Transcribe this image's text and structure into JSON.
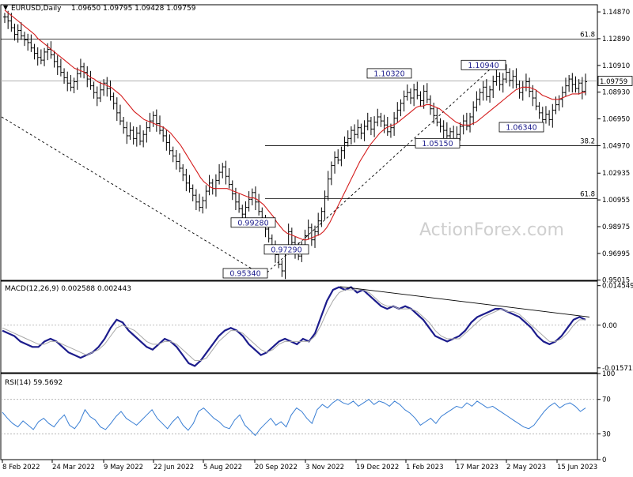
{
  "header": {
    "arrow_glyph": "▼",
    "symbol": "EURUSD,Daily",
    "ohlc": "1.09650 1.09795 1.09428 1.09759"
  },
  "watermark": "ActionForex.com",
  "chart_data": [
    {
      "type": "candlestick",
      "panel": "price",
      "title": "EURUSD,Daily",
      "ylim": [
        0.95,
        1.154
      ],
      "y_ticks": [
        "1.14870",
        "1.12890",
        "1.10910",
        "1.08930",
        "1.06950",
        "1.04970",
        "1.02935",
        "1.00955",
        "0.98975",
        "0.96995",
        "0.95015"
      ],
      "y_tick_values": [
        1.1487,
        1.1289,
        1.1091,
        1.0893,
        1.0695,
        1.0497,
        1.02935,
        1.00955,
        0.98975,
        0.96995,
        0.95015
      ],
      "current_price": "1.09759",
      "current_price_value": 1.09759,
      "fib_levels": [
        {
          "label": "61.8",
          "value": 1.1285
        },
        {
          "label": "38.2",
          "value": 1.0497
        },
        {
          "label": "61.8",
          "value": 1.0105
        }
      ],
      "annotations": [
        {
          "text": "1.10320",
          "value": 1.1032
        },
        {
          "text": "1.10940",
          "value": 1.1094
        },
        {
          "text": "1.06340",
          "value": 1.0634
        },
        {
          "text": "1.05150",
          "value": 1.0515
        },
        {
          "text": "0.95340",
          "value": 0.9534
        },
        {
          "text": "0.99280",
          "value": 0.9928
        },
        {
          "text": "0.97290",
          "value": 0.9729
        }
      ],
      "close_series": [
        1.145,
        1.142,
        1.137,
        1.132,
        1.135,
        1.131,
        1.128,
        1.126,
        1.122,
        1.118,
        1.115,
        1.113,
        1.119,
        1.121,
        1.117,
        1.112,
        1.108,
        1.104,
        1.1,
        1.096,
        1.093,
        1.097,
        1.103,
        1.108,
        1.104,
        1.099,
        1.094,
        1.089,
        1.085,
        1.091,
        1.096,
        1.092,
        1.086,
        1.081,
        1.074,
        1.068,
        1.063,
        1.057,
        1.061,
        1.055,
        1.059,
        1.053,
        1.058,
        1.063,
        1.068,
        1.072,
        1.066,
        1.061,
        1.057,
        1.052,
        1.046,
        1.042,
        1.038,
        1.033,
        1.028,
        1.022,
        1.018,
        1.013,
        1.008,
        1.004,
        1.009,
        1.016,
        1.022,
        1.018,
        1.024,
        1.03,
        1.034,
        1.027,
        1.021,
        1.014,
        1.008,
        1.003,
        0.999,
        1.004,
        1.01,
        1.015,
        1.008,
        1.001,
        0.994,
        0.988,
        0.981,
        0.975,
        0.969,
        0.962,
        0.957,
        0.972,
        0.986,
        0.978,
        0.972,
        0.968,
        0.976,
        0.983,
        0.989,
        0.98,
        0.986,
        0.994,
        1.001,
        1.012,
        1.025,
        1.035,
        1.041,
        1.039,
        1.046,
        1.052,
        1.055,
        1.061,
        1.058,
        1.063,
        1.059,
        1.064,
        1.068,
        1.062,
        1.067,
        1.071,
        1.068,
        1.065,
        1.06,
        1.063,
        1.07,
        1.076,
        1.081,
        1.086,
        1.089,
        1.085,
        1.091,
        1.087,
        1.083,
        1.09,
        1.084,
        1.077,
        1.072,
        1.067,
        1.064,
        1.061,
        1.057,
        1.06,
        1.055,
        1.058,
        1.064,
        1.068,
        1.064,
        1.071,
        1.078,
        1.084,
        1.089,
        1.093,
        1.086,
        1.091,
        1.097,
        1.101,
        1.095,
        1.099,
        1.104,
        1.098,
        1.101,
        1.095,
        1.089,
        1.093,
        1.097,
        1.09,
        1.085,
        1.079,
        1.074,
        1.069,
        1.073,
        1.069,
        1.076,
        1.08,
        1.084,
        1.089,
        1.094,
        1.099,
        1.095,
        1.092,
        1.096,
        1.09,
        1.097
      ],
      "ma_series": [
        1.15,
        1.148,
        1.146,
        1.144,
        1.142,
        1.14,
        1.138,
        1.136,
        1.134,
        1.132,
        1.129,
        1.127,
        1.125,
        1.123,
        1.121,
        1.119,
        1.117,
        1.115,
        1.113,
        1.111,
        1.109,
        1.107,
        1.106,
        1.105,
        1.104,
        1.102,
        1.1,
        1.099,
        1.097,
        1.096,
        1.095,
        1.094,
        1.093,
        1.091,
        1.089,
        1.087,
        1.084,
        1.081,
        1.078,
        1.075,
        1.073,
        1.071,
        1.069,
        1.068,
        1.067,
        1.066,
        1.065,
        1.064,
        1.063,
        1.061,
        1.059,
        1.056,
        1.053,
        1.05,
        1.046,
        1.042,
        1.038,
        1.034,
        1.03,
        1.026,
        1.023,
        1.021,
        1.019,
        1.018,
        1.018,
        1.018,
        1.018,
        1.018,
        1.017,
        1.016,
        1.015,
        1.014,
        1.013,
        1.012,
        1.011,
        1.011,
        1.01,
        1.008,
        1.006,
        1.003,
        1.0,
        0.997,
        0.993,
        0.99,
        0.987,
        0.985,
        0.984,
        0.983,
        0.982,
        0.981,
        0.98,
        0.98,
        0.981,
        0.982,
        0.983,
        0.984,
        0.986,
        0.989,
        0.993,
        0.998,
        1.003,
        1.008,
        1.013,
        1.018,
        1.023,
        1.028,
        1.033,
        1.038,
        1.042,
        1.046,
        1.05,
        1.053,
        1.056,
        1.059,
        1.061,
        1.063,
        1.064,
        1.065,
        1.066,
        1.068,
        1.07,
        1.072,
        1.074,
        1.076,
        1.078,
        1.079,
        1.079,
        1.08,
        1.08,
        1.079,
        1.078,
        1.077,
        1.075,
        1.073,
        1.071,
        1.069,
        1.067,
        1.066,
        1.065,
        1.065,
        1.065,
        1.066,
        1.067,
        1.069,
        1.071,
        1.073,
        1.075,
        1.077,
        1.079,
        1.081,
        1.083,
        1.085,
        1.087,
        1.089,
        1.091,
        1.092,
        1.093,
        1.093,
        1.093,
        1.092,
        1.091,
        1.089,
        1.087,
        1.086,
        1.085,
        1.084,
        1.084,
        1.084,
        1.085,
        1.086,
        1.087,
        1.088,
        1.088,
        1.088,
        1.089,
        1.089
      ]
    },
    {
      "type": "line",
      "panel": "macd",
      "title": "MACD(12,26,9) 0.002588 0.002443",
      "ylim": [
        -0.0175,
        0.0162
      ],
      "y_ticks": [
        "0.014549",
        "0.00",
        "-0.015712"
      ],
      "y_tick_values": [
        0.014549,
        0.0,
        -0.015712
      ],
      "series": [
        {
          "name": "MACD",
          "values": [
            -0.002,
            -0.003,
            -0.004,
            -0.006,
            -0.007,
            -0.008,
            -0.008,
            -0.006,
            -0.005,
            -0.006,
            -0.008,
            -0.01,
            -0.011,
            -0.012,
            -0.011,
            -0.01,
            -0.008,
            -0.005,
            -0.001,
            0.002,
            0.001,
            -0.002,
            -0.004,
            -0.006,
            -0.008,
            -0.009,
            -0.007,
            -0.005,
            -0.006,
            -0.008,
            -0.011,
            -0.014,
            -0.015,
            -0.013,
            -0.01,
            -0.007,
            -0.004,
            -0.002,
            -0.001,
            -0.002,
            -0.004,
            -0.007,
            -0.009,
            -0.011,
            -0.01,
            -0.008,
            -0.006,
            -0.005,
            -0.006,
            -0.007,
            -0.005,
            -0.006,
            -0.003,
            0.003,
            0.009,
            0.013,
            0.014,
            0.013,
            0.014,
            0.012,
            0.013,
            0.011,
            0.009,
            0.007,
            0.006,
            0.007,
            0.006,
            0.007,
            0.006,
            0.004,
            0.002,
            -0.001,
            -0.004,
            -0.005,
            -0.006,
            -0.005,
            -0.004,
            -0.002,
            0.001,
            0.003,
            0.004,
            0.005,
            0.006,
            0.006,
            0.005,
            0.004,
            0.003,
            0.001,
            -0.001,
            -0.004,
            -0.006,
            -0.007,
            -0.006,
            -0.004,
            -0.001,
            0.002,
            0.003,
            0.002
          ]
        },
        {
          "name": "Signal",
          "values": [
            -0.001,
            -0.002,
            -0.003,
            -0.004,
            -0.005,
            -0.006,
            -0.007,
            -0.007,
            -0.006,
            -0.006,
            -0.007,
            -0.008,
            -0.009,
            -0.01,
            -0.011,
            -0.01,
            -0.009,
            -0.007,
            -0.004,
            -0.001,
            0.0,
            -0.001,
            -0.002,
            -0.004,
            -0.006,
            -0.007,
            -0.007,
            -0.006,
            -0.006,
            -0.007,
            -0.009,
            -0.011,
            -0.013,
            -0.013,
            -0.012,
            -0.009,
            -0.006,
            -0.004,
            -0.002,
            -0.002,
            -0.003,
            -0.005,
            -0.007,
            -0.009,
            -0.01,
            -0.009,
            -0.007,
            -0.006,
            -0.006,
            -0.006,
            -0.006,
            -0.006,
            -0.004,
            0.0,
            0.005,
            0.009,
            0.012,
            0.013,
            0.013,
            0.013,
            0.013,
            0.012,
            0.01,
            0.008,
            0.007,
            0.007,
            0.006,
            0.006,
            0.006,
            0.005,
            0.003,
            0.001,
            -0.002,
            -0.004,
            -0.005,
            -0.005,
            -0.005,
            -0.003,
            -0.001,
            0.001,
            0.003,
            0.004,
            0.005,
            0.006,
            0.005,
            0.005,
            0.004,
            0.002,
            0.0,
            -0.002,
            -0.004,
            -0.006,
            -0.006,
            -0.005,
            -0.003,
            0.0,
            0.002,
            0.002
          ]
        }
      ],
      "trendline": true
    },
    {
      "type": "line",
      "panel": "rsi",
      "title": "RSI(14) 59.5692",
      "ylim": [
        0,
        100
      ],
      "y_ticks": [
        "100",
        "70",
        "30",
        "0"
      ],
      "y_tick_values": [
        100,
        70,
        30,
        0
      ],
      "series": [
        {
          "name": "RSI",
          "values": [
            55,
            48,
            42,
            38,
            45,
            40,
            35,
            44,
            48,
            42,
            38,
            46,
            52,
            40,
            36,
            44,
            58,
            50,
            46,
            38,
            35,
            42,
            50,
            56,
            48,
            44,
            40,
            46,
            52,
            58,
            48,
            42,
            36,
            44,
            50,
            40,
            34,
            42,
            56,
            60,
            54,
            48,
            44,
            38,
            36,
            46,
            52,
            40,
            34,
            28,
            36,
            42,
            48,
            40,
            44,
            38,
            52,
            60,
            56,
            48,
            42,
            58,
            64,
            60,
            66,
            70,
            66,
            64,
            68,
            62,
            66,
            70,
            64,
            68,
            66,
            62,
            68,
            64,
            58,
            54,
            48,
            40,
            44,
            48,
            42,
            50,
            54,
            58,
            62,
            60,
            66,
            62,
            68,
            64,
            60,
            62,
            58,
            54,
            50,
            46,
            42,
            38,
            36,
            40,
            48,
            56,
            62,
            66,
            60,
            64,
            66,
            62,
            56,
            60
          ]
        }
      ]
    }
  ],
  "x_axis": {
    "labels": [
      "8 Feb 2022",
      "24 Mar 2022",
      "9 May 2022",
      "22 Jun 2022",
      "5 Aug 2022",
      "20 Sep 2022",
      "3 Nov 2022",
      "19 Dec 2022",
      "1 Feb 2023",
      "17 Mar 2023",
      "2 May 2023",
      "15 Jun 2023"
    ]
  }
}
